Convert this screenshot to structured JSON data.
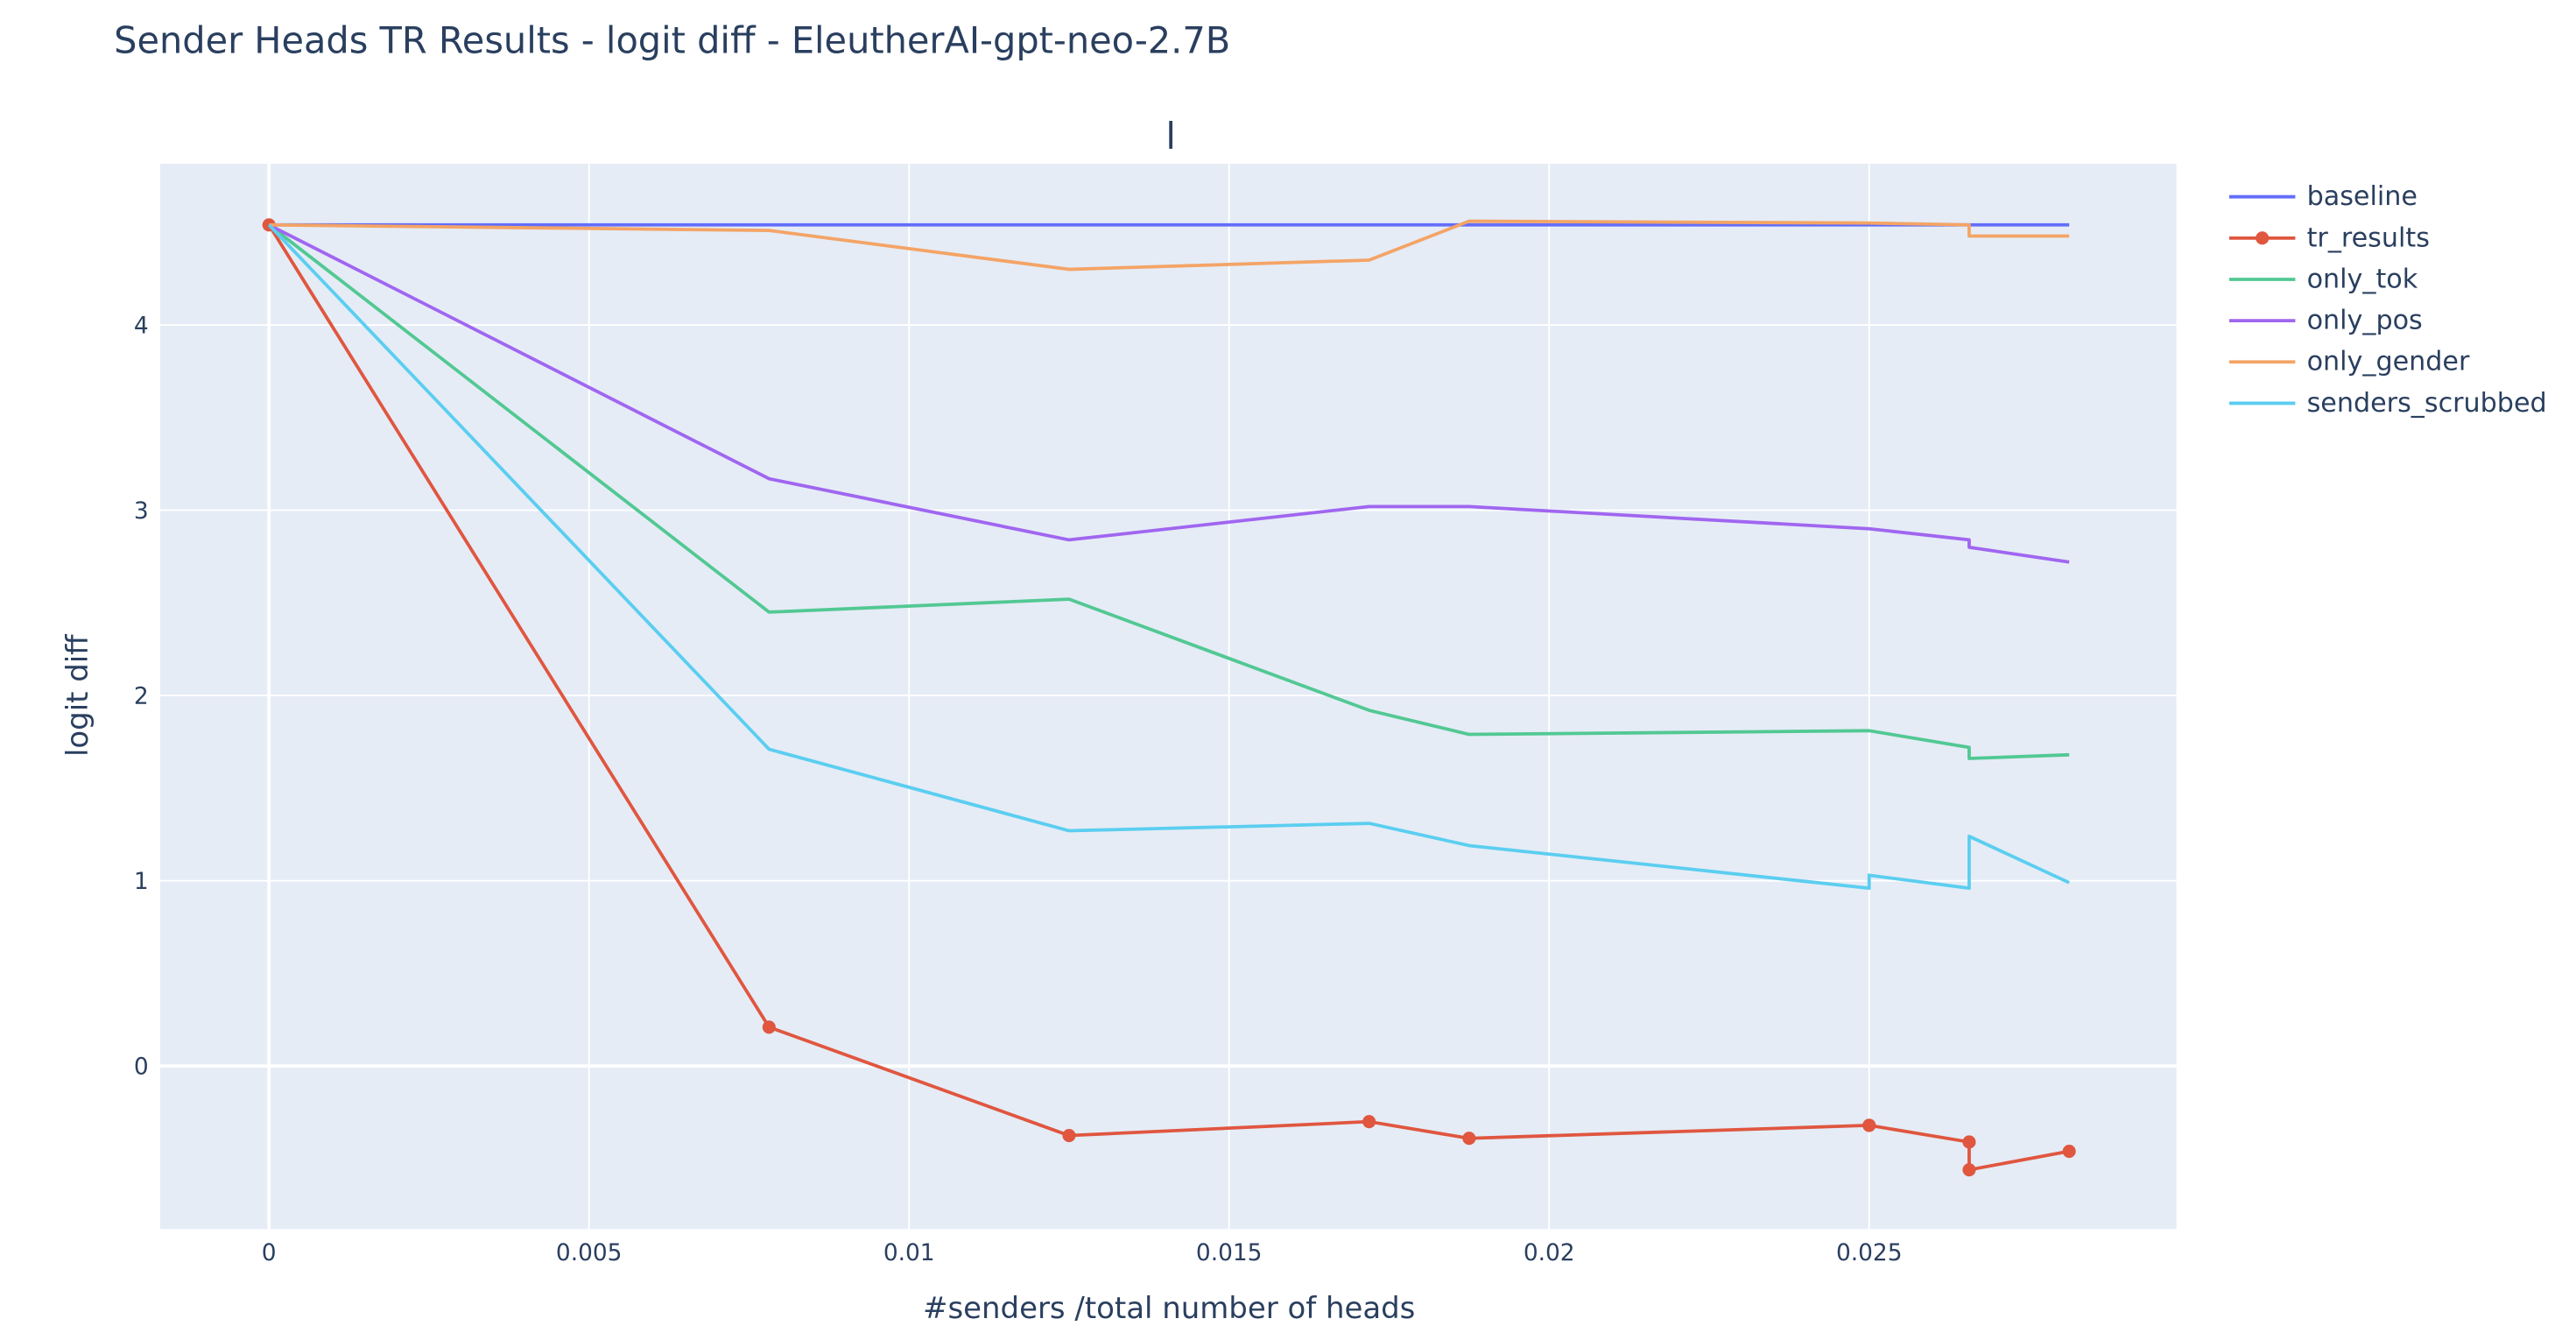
{
  "chart_data": {
    "type": "line",
    "title": "Sender Heads TR Results - logit diff - EleutherAI-gpt-neo-2.7B",
    "subplot_title": "l",
    "xlabel": "#senders /total number of heads",
    "ylabel": "logit diff",
    "xlim": [
      -0.0017,
      0.0298
    ],
    "ylim": [
      -0.88,
      4.87
    ],
    "grid": true,
    "legend_position": "top-right-outside",
    "x_ticks": [
      0,
      0.005,
      0.01,
      0.015,
      0.02,
      0.025
    ],
    "x_tick_labels": [
      "0",
      "0.005",
      "0.01",
      "0.015",
      "0.02",
      "0.025"
    ],
    "y_ticks": [
      0,
      1,
      2,
      3,
      4
    ],
    "y_tick_labels": [
      "0",
      "1",
      "2",
      "3",
      "4"
    ],
    "x": [
      0,
      0.0078125,
      0.0125,
      0.0171875,
      0.01875,
      0.025,
      0.025,
      0.0265625,
      0.0265625,
      0.028125
    ],
    "series": [
      {
        "name": "baseline",
        "color": "#636efa",
        "markers": false,
        "values": [
          4.54,
          4.54,
          4.54,
          4.54,
          4.54,
          4.54,
          4.54,
          4.54,
          4.54,
          4.54
        ]
      },
      {
        "name": "tr_results",
        "color": "#e0563f",
        "markers": true,
        "values": [
          4.54,
          0.21,
          -0.375,
          -0.3,
          -0.39,
          -0.32,
          -0.32,
          -0.41,
          -0.56,
          -0.46
        ]
      },
      {
        "name": "only_tok",
        "color": "#52c893",
        "markers": false,
        "values": [
          4.54,
          2.45,
          2.52,
          1.92,
          1.79,
          1.81,
          1.81,
          1.72,
          1.66,
          1.68
        ]
      },
      {
        "name": "only_pos",
        "color": "#a066f0",
        "markers": false,
        "values": [
          4.54,
          3.17,
          2.84,
          3.02,
          3.02,
          2.9,
          2.9,
          2.84,
          2.8,
          2.72
        ]
      },
      {
        "name": "only_gender",
        "color": "#f4a466",
        "markers": false,
        "values": [
          4.54,
          4.51,
          4.3,
          4.35,
          4.56,
          4.55,
          4.55,
          4.54,
          4.48,
          4.48
        ]
      },
      {
        "name": "senders_scrubbed",
        "color": "#5bcef0",
        "markers": false,
        "values": [
          4.54,
          1.71,
          1.27,
          1.31,
          1.19,
          0.96,
          1.03,
          0.96,
          1.24,
          0.99
        ]
      }
    ]
  }
}
